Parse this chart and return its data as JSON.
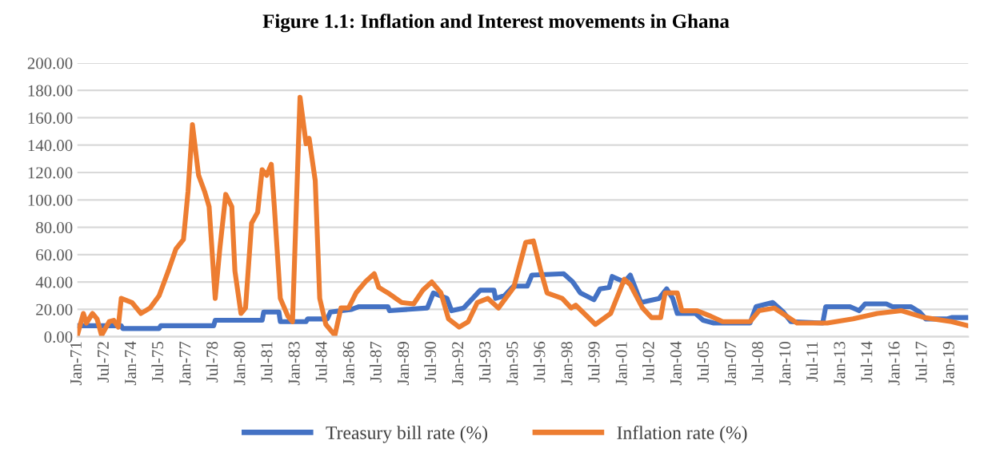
{
  "chart_data": {
    "type": "line",
    "title": "Figure 1.1: Inflation and Interest movements in Ghana",
    "series": [
      {
        "name": "Treasury bill rate (%)",
        "color": "#4472c4",
        "x": [
          "1971-01",
          "1973-06",
          "1973-07",
          "1975-07",
          "1975-08",
          "1978-07",
          "1978-08",
          "1981-03",
          "1981-04",
          "1982-02",
          "1982-03",
          "1983-08",
          "1983-09",
          "1984-10",
          "1984-12",
          "1986-02",
          "1986-07",
          "1988-02",
          "1988-03",
          "1990-04",
          "1990-08",
          "1991-05",
          "1991-08",
          "1992-04",
          "1993-03",
          "1993-12",
          "1994-01",
          "1994-07",
          "1995-01",
          "1995-10",
          "1996-01",
          "1997-10",
          "1998-04",
          "1998-09",
          "1999-06",
          "1999-10",
          "2000-04",
          "2000-06",
          "2001-02",
          "2001-06",
          "2002-01",
          "2003-01",
          "2003-06",
          "2003-10",
          "2004-01",
          "2005-01",
          "2005-06",
          "2006-01",
          "2008-01",
          "2008-05",
          "2009-04",
          "2009-11",
          "2010-04",
          "2012-01",
          "2012-03",
          "2013-07",
          "2014-01",
          "2014-05",
          "2015-07",
          "2015-11",
          "2016-11",
          "2017-05",
          "2017-09",
          "2018-11",
          "2019-02",
          "2020-01"
        ],
        "values": [
          8,
          8,
          6,
          6,
          8,
          8,
          12,
          12,
          18,
          18,
          11,
          11,
          13,
          13,
          18,
          20,
          22,
          22,
          19,
          21,
          32,
          28,
          19,
          21,
          34,
          34,
          28,
          30,
          37,
          37,
          45,
          46,
          40,
          32,
          27,
          35,
          36,
          44,
          40,
          45,
          25,
          28,
          35,
          28,
          17,
          17,
          12,
          10,
          10,
          22,
          25,
          18,
          11,
          10,
          22,
          22,
          19,
          24,
          24,
          22,
          22,
          18,
          13,
          13,
          14,
          14
        ]
      },
      {
        "name": "Inflation rate (%)",
        "color": "#ed7d31",
        "x": [
          "1971-01",
          "1971-03",
          "1971-05",
          "1971-07",
          "1971-11",
          "1972-02",
          "1972-05",
          "1972-10",
          "1973-01",
          "1973-04",
          "1973-06",
          "1974-01",
          "1974-07",
          "1975-01",
          "1975-07",
          "1976-01",
          "1976-06",
          "1976-11",
          "1977-02",
          "1977-05",
          "1977-09",
          "1978-01",
          "1978-04",
          "1978-08",
          "1978-11",
          "1979-03",
          "1979-07",
          "1979-09",
          "1980-01",
          "1980-04",
          "1980-08",
          "1980-12",
          "1981-03",
          "1981-06",
          "1981-09",
          "1981-11",
          "1982-03",
          "1982-08",
          "1982-11",
          "1983-04",
          "1983-08",
          "1983-10",
          "1984-02",
          "1984-05",
          "1984-09",
          "1985-03",
          "1985-07",
          "1985-12",
          "1986-05",
          "1986-11",
          "1987-05",
          "1987-08",
          "1988-02",
          "1988-11",
          "1989-07",
          "1990-01",
          "1990-07",
          "1991-01",
          "1991-06",
          "1992-01",
          "1992-07",
          "1993-01",
          "1993-08",
          "1994-03",
          "1995-01",
          "1995-09",
          "1996-02",
          "1996-07",
          "1996-11",
          "1997-09",
          "1998-03",
          "1998-06",
          "1999-07",
          "2000-05",
          "2001-02",
          "2001-06",
          "2002-02",
          "2002-08",
          "2003-02",
          "2003-05",
          "2004-01",
          "2004-04",
          "2005-02",
          "2005-11",
          "2006-07",
          "2008-01",
          "2008-07",
          "2009-05",
          "2010-08",
          "2012-04",
          "2013-09",
          "2015-01",
          "2016-05",
          "2017-08",
          "2019-02",
          "2020-01"
        ],
        "values": [
          1,
          9,
          17,
          10,
          17,
          13,
          1,
          11,
          12,
          7,
          28,
          25,
          17,
          21,
          30,
          48,
          64,
          71,
          106,
          155,
          118,
          106,
          95,
          28,
          64,
          104,
          95,
          48,
          17,
          21,
          83,
          91,
          122,
          118,
          126,
          95,
          28,
          15,
          11,
          175,
          141,
          145,
          114,
          28,
          9,
          1,
          21,
          21,
          32,
          40,
          46,
          36,
          32,
          25,
          24,
          34,
          40,
          32,
          13,
          7,
          11,
          25,
          28,
          21,
          36,
          69,
          70,
          48,
          32,
          28,
          21,
          23,
          9,
          17,
          42,
          38,
          21,
          14,
          14,
          32,
          32,
          19,
          19,
          15,
          11,
          11,
          19,
          21,
          10,
          10,
          13,
          17,
          19,
          14,
          11,
          8
        ]
      }
    ],
    "xlim": [
      "1971-01",
      "2020-01"
    ],
    "xticks": [
      {
        "value": "1971-01",
        "label": "Jan-71"
      },
      {
        "value": "1972-07",
        "label": "Jul-72"
      },
      {
        "value": "1974-01",
        "label": "Jan-74"
      },
      {
        "value": "1975-07",
        "label": "Jul-75"
      },
      {
        "value": "1977-01",
        "label": "Jan-77"
      },
      {
        "value": "1978-07",
        "label": "Jul-78"
      },
      {
        "value": "1980-01",
        "label": "Jan-80"
      },
      {
        "value": "1981-07",
        "label": "Jul-81"
      },
      {
        "value": "1983-01",
        "label": "Jan-83"
      },
      {
        "value": "1984-07",
        "label": "Jul-84"
      },
      {
        "value": "1986-01",
        "label": "Jan-86"
      },
      {
        "value": "1987-07",
        "label": "Jul-87"
      },
      {
        "value": "1989-01",
        "label": "Jan-89"
      },
      {
        "value": "1990-07",
        "label": "Jul-90"
      },
      {
        "value": "1992-01",
        "label": "Jan-92"
      },
      {
        "value": "1993-07",
        "label": "Jul-93"
      },
      {
        "value": "1995-01",
        "label": "Jan-95"
      },
      {
        "value": "1996-07",
        "label": "Jul-96"
      },
      {
        "value": "1998-01",
        "label": "Jan-98"
      },
      {
        "value": "1999-07",
        "label": "Jul-99"
      },
      {
        "value": "2001-01",
        "label": "Jan-01"
      },
      {
        "value": "2002-07",
        "label": "Jul-02"
      },
      {
        "value": "2004-01",
        "label": "Jan-04"
      },
      {
        "value": "2005-07",
        "label": "Jul-05"
      },
      {
        "value": "2007-01",
        "label": "Jan-07"
      },
      {
        "value": "2008-07",
        "label": "Jul-08"
      },
      {
        "value": "2010-01",
        "label": "Jan-10"
      },
      {
        "value": "2011-07",
        "label": "Jul-11"
      },
      {
        "value": "2013-01",
        "label": "Jan-13"
      },
      {
        "value": "2014-07",
        "label": "Jul-14"
      },
      {
        "value": "2016-01",
        "label": "Jan-16"
      },
      {
        "value": "2017-07",
        "label": "Jul-17"
      },
      {
        "value": "2019-01",
        "label": "Jan-19"
      }
    ],
    "ylim": [
      0,
      200
    ],
    "yticks": [
      {
        "value": 0,
        "label": "0.00"
      },
      {
        "value": 20,
        "label": "20.00"
      },
      {
        "value": 40,
        "label": "40.00"
      },
      {
        "value": 60,
        "label": "60.00"
      },
      {
        "value": 80,
        "label": "80.00"
      },
      {
        "value": 100,
        "label": "100.00"
      },
      {
        "value": 120,
        "label": "120.00"
      },
      {
        "value": 140,
        "label": "140.00"
      },
      {
        "value": 160,
        "label": "160.00"
      },
      {
        "value": 180,
        "label": "180.00"
      },
      {
        "value": 200,
        "label": "200.00"
      }
    ],
    "grid": "y",
    "legend": "bottom",
    "marker": "none",
    "line_style": "solid"
  }
}
